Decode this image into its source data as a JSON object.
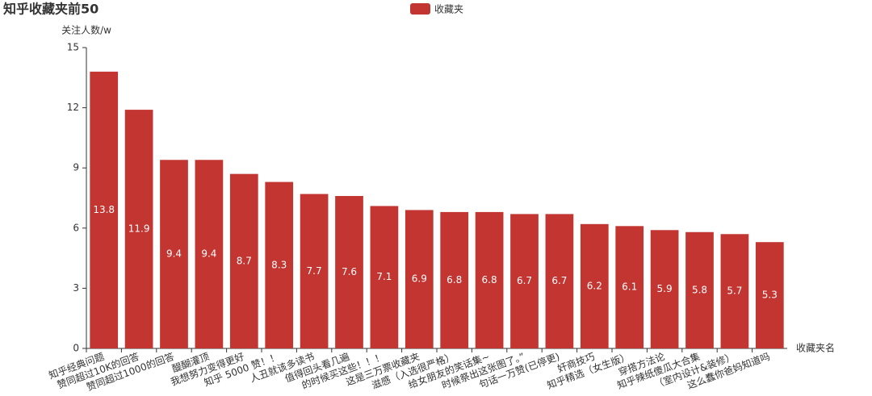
{
  "chart_data": {
    "type": "bar",
    "title": "知乎收藏夹前50",
    "y_label": "关注人数/w",
    "x_label": "收藏夹名",
    "categories": [
      "知乎经典问题",
      "赞同超过10K的回答",
      "赞同超过1000的回答",
      "醍醐灌顶",
      "我想努力变得更好",
      "知乎 5000 赞！！",
      "人丑就该多读书",
      "值得回头看几遍",
      "的时候买这些！！！",
      "这是三万票收藏夹",
      "滋感（入选很严格）",
      "给女朋友的笑话集~",
      "时候祭出这张图了。”",
      "句话一万赞(已停更)",
      "奸商技巧",
      "知乎精选（女生版）",
      "穿搭方法论",
      "知乎辣纸傻瓜大合集",
      "（室内设计&装修）",
      "这么蠢你爸妈知道吗"
    ],
    "series": [
      {
        "name": "收藏夹",
        "color": "#c23531",
        "values": [
          13.8,
          11.9,
          9.4,
          9.4,
          8.7,
          8.3,
          7.7,
          7.6,
          7.1,
          6.9,
          6.8,
          6.8,
          6.7,
          6.7,
          6.2,
          6.1,
          5.9,
          5.8,
          5.7,
          5.3
        ]
      }
    ],
    "ylim": [
      0,
      15
    ],
    "yticks": [
      0,
      3,
      6,
      9,
      12,
      15
    ],
    "grid": false,
    "legend": "top"
  }
}
